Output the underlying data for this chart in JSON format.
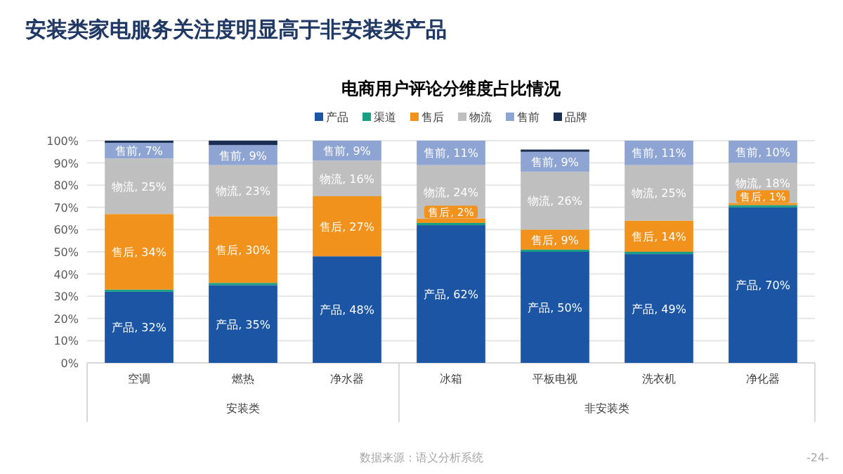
{
  "chart_data": {
    "type": "bar",
    "stacked": true,
    "title": "安装类家电服务关注度明显高于非安装类产品",
    "subtitle": "电商用户评论分维度占比情况",
    "categories": [
      "空调",
      "燃热",
      "净水器",
      "冰箱",
      "平板电视",
      "洗衣机",
      "净化器"
    ],
    "series": [
      {
        "name": "产品",
        "color": "#1b55a3",
        "values": [
          32,
          35,
          48,
          62,
          50,
          49,
          70
        ],
        "value_labels": [
          "产品, 32%",
          "产品, 35%",
          "产品, 48%",
          "产品, 62%",
          "产品, 50%",
          "产品, 49%",
          "产品, 70%"
        ]
      },
      {
        "name": "渠道",
        "color": "#1a9e84",
        "values": [
          1,
          1,
          0,
          1,
          1,
          1,
          1
        ]
      },
      {
        "name": "售后",
        "color": "#f0921c",
        "values": [
          34,
          30,
          27,
          2,
          9,
          14,
          1
        ],
        "value_labels": [
          "售后, 34%",
          "售后, 30%",
          "售后, 27%",
          "售后, 2%",
          "售后, 9%",
          "售后, 14%",
          "售后, 1%"
        ]
      },
      {
        "name": "物流",
        "color": "#bfbfbf",
        "values": [
          25,
          23,
          16,
          24,
          26,
          25,
          18
        ],
        "value_labels": [
          "物流, 25%",
          "物流, 23%",
          "物流, 16%",
          "物流, 24%",
          "物流, 26%",
          "物流, 25%",
          "物流, 18%"
        ]
      },
      {
        "name": "售前",
        "color": "#8ea5d3",
        "values": [
          7,
          9,
          9,
          11,
          9,
          11,
          10
        ],
        "value_labels": [
          "售前, 7%",
          "售前, 9%",
          "售前, 9%",
          "售前, 11%",
          "售前, 9%",
          "售前, 11%",
          "售前, 10%"
        ]
      },
      {
        "name": "品牌",
        "color": "#1b2f52",
        "values": [
          1,
          2,
          0,
          0,
          1,
          0,
          0
        ]
      }
    ],
    "ylim": [
      0,
      100
    ],
    "yticks": [
      {
        "value": 0,
        "label": "0%"
      },
      {
        "value": 10,
        "label": "10%"
      },
      {
        "value": 20,
        "label": "20%"
      },
      {
        "value": 30,
        "label": "30%"
      },
      {
        "value": 40,
        "label": "40%"
      },
      {
        "value": 50,
        "label": "50%"
      },
      {
        "value": 60,
        "label": "60%"
      },
      {
        "value": 70,
        "label": "70%"
      },
      {
        "value": 80,
        "label": "80%"
      },
      {
        "value": 90,
        "label": "90%"
      },
      {
        "value": 100,
        "label": "100%"
      }
    ],
    "grid": "y",
    "legend": "top",
    "annotations": [
      "安装类",
      "非安装类",
      "数据来源：语义分析系统",
      "-24-"
    ]
  }
}
